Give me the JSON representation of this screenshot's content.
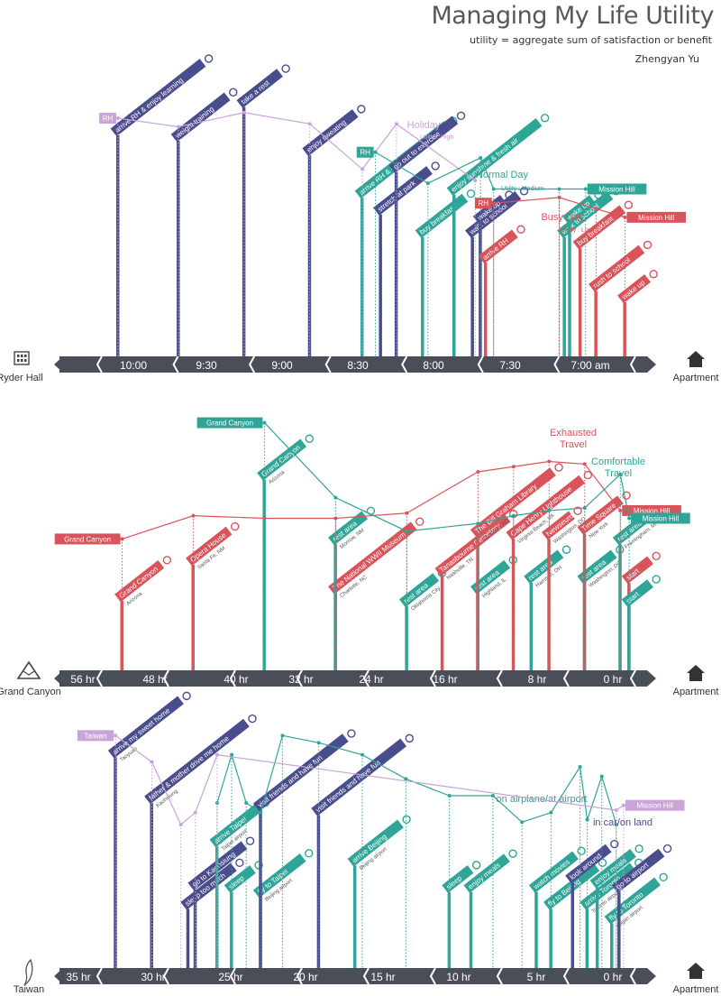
{
  "header": {
    "title": "Managing My Life Utility",
    "subtitle": "utility = aggregate sum of satisfaction or benefit",
    "author": "Zhengyan Yu"
  },
  "colors": {
    "purple": "#c9a3d9",
    "teal": "#2ea597",
    "red": "#d9545a",
    "navy": "#4a4d8c",
    "axis": "#4a4e58"
  },
  "chart_data": [
    {
      "type": "line",
      "title": "",
      "start_label": "Ryder Hall",
      "start_icon": "building-icon",
      "end_label": "Apartment",
      "end_icon": "home-icon",
      "time_labels": [
        "10:00",
        "9:30",
        "9:00",
        "8:30",
        "8:00",
        "7:30",
        "7:00 am"
      ],
      "series": [
        {
          "name": "Holiday",
          "sub": "Utility : High",
          "color": "#c9a3d9",
          "start_tag": "RH",
          "end_tag": "",
          "points": [
            [
              "10:18",
              8.7
            ],
            [
              "9:55",
              8.4
            ],
            [
              "9:30",
              8.9
            ],
            [
              "9:05",
              8.5
            ],
            [
              "8:45",
              6.9
            ],
            [
              "8:32",
              8.5
            ],
            [
              "8:02",
              6.5
            ]
          ]
        },
        {
          "name": "Normal Day",
          "sub": "Utility : Medium",
          "color": "#2ea597",
          "start_tag": "RH",
          "end_tag": "Mission Hill",
          "points": [
            [
              "8:40",
              7.5
            ],
            [
              "8:20",
              6.4
            ],
            [
              "8:00",
              7.3
            ],
            [
              "7:55",
              6.2
            ],
            [
              "7:30",
              6.2
            ],
            [
              "7:20",
              6.2
            ]
          ]
        },
        {
          "name": "Busy Day",
          "sub": "Utility : Low",
          "color": "#d9545a",
          "start_tag": "RH",
          "end_tag": "Mission Hill",
          "points": [
            [
              "7:55",
              5.7
            ],
            [
              "7:30",
              5.9
            ],
            [
              "7:16",
              5.5
            ],
            [
              "7:05",
              5.2
            ]
          ]
        }
      ],
      "events": [
        {
          "label": "arrive RH & enjoy learning",
          "loc": "",
          "icon": "book-icon",
          "color": "#4a4d8c",
          "time": "10:18",
          "top": 6.1,
          "h": 98
        },
        {
          "label": "weight training",
          "loc": "",
          "icon": "dumbbell-icon",
          "color": "#4a4d8c",
          "time": "9:55",
          "top": 5.9,
          "h": 68
        },
        {
          "label": "take a rest",
          "loc": "",
          "icon": "rest-icon",
          "color": "#4a4d8c",
          "time": "9:30",
          "top": 7.1,
          "h": 50
        },
        {
          "label": "enjoy sweating",
          "loc": "",
          "icon": "sweat-icon",
          "color": "#4a4d8c",
          "time": "9:05",
          "top": 5.4,
          "h": 68
        },
        {
          "label": "arrive RH & enjoy learning",
          "loc": "",
          "icon": "book-icon",
          "color": "#2ea597",
          "time": "8:45",
          "top": 3.9,
          "h": 112
        },
        {
          "label": "stretch at park",
          "loc": "",
          "icon": "stretch-icon",
          "color": "#4a4d8c",
          "time": "8:38",
          "top": 3.3,
          "h": 60
        },
        {
          "label": "go out to exercise",
          "loc": "",
          "icon": "run-icon",
          "color": "#4a4d8c",
          "time": "8:32",
          "top": 4.8,
          "h": 60
        },
        {
          "label": "buy breakfast",
          "loc": "",
          "icon": "breakfast-icon",
          "color": "#2ea597",
          "time": "8:22",
          "top": 2.5,
          "h": 56
        },
        {
          "label": "enjoy sunshine & fresh air",
          "loc": "",
          "icon": "sun-icon",
          "color": "#2ea597",
          "time": "8:10",
          "top": 4.0,
          "h": 108
        },
        {
          "label": "walk to school",
          "loc": "",
          "icon": "walk-icon",
          "color": "#4a4d8c",
          "time": "8:03",
          "top": 2.5,
          "h": 56
        },
        {
          "label": "wake up",
          "loc": "",
          "icon": "bed-icon",
          "color": "#4a4d8c",
          "time": "8:00",
          "top": 3.0,
          "h": 40
        },
        {
          "label": "arrive RH",
          "loc": "",
          "icon": "book-icon",
          "color": "#d9545a",
          "time": "7:58",
          "top": 1.6,
          "h": 40
        },
        {
          "label": "walk to school",
          "loc": "",
          "icon": "walk-icon",
          "color": "#2ea597",
          "time": "7:28",
          "top": 2.5,
          "h": 56
        },
        {
          "label": "wake up",
          "loc": "",
          "icon": "bed-icon",
          "color": "#2ea597",
          "time": "7:26",
          "top": 3.0,
          "h": 36
        },
        {
          "label": "buy breakfast",
          "loc": "",
          "icon": "breakfast-icon",
          "color": "#d9545a",
          "time": "7:22",
          "top": 2.1,
          "h": 56
        },
        {
          "label": "rush to school",
          "loc": "",
          "icon": "bike-icon",
          "color": "#d9545a",
          "time": "7:16",
          "top": 0.6,
          "h": 62
        },
        {
          "label": "wake up",
          "loc": "",
          "icon": "bed-icon",
          "color": "#d9545a",
          "time": "7:05",
          "top": 0.2,
          "h": 36
        }
      ]
    },
    {
      "type": "line",
      "title": "",
      "start_label": "Grand Canyon",
      "start_icon": "mountain-icon",
      "end_label": "Apartment",
      "end_icon": "home-icon",
      "time_labels": [
        "56 hr",
        "48 hr",
        "40 hr",
        "32 hr",
        "24 hr",
        "16 hr",
        "8 hr",
        "0 hr"
      ],
      "series": [
        {
          "name": "Exhausted Travel",
          "sub": "",
          "color": "#d9545a",
          "start_tag": "Grand Canyon",
          "end_tag": "Mission Hill",
          "points": [
            [
              56,
              5.4
            ],
            [
              48,
              6.3
            ],
            [
              40,
              6.2
            ],
            [
              32,
              6.2
            ],
            [
              24,
              6.4
            ],
            [
              16,
              8.0
            ],
            [
              12,
              8.2
            ],
            [
              8,
              8.4
            ],
            [
              4,
              8.3
            ],
            [
              0,
              6.5
            ]
          ]
        },
        {
          "name": "Comfortable Travel",
          "sub": "",
          "color": "#2ea597",
          "start_tag": "Grand Canyon",
          "end_tag": "Mission Hill",
          "points": [
            [
              40,
              9.9
            ],
            [
              32,
              7.0
            ],
            [
              24,
              5.7
            ],
            [
              16,
              6.0
            ],
            [
              12,
              6.3
            ],
            [
              8,
              6.5
            ],
            [
              4,
              6.6
            ],
            [
              0,
              7.9
            ],
            [
              -1,
              6.2
            ]
          ]
        }
      ],
      "events": [
        {
          "label": "Grand Canyon",
          "loc": "Arizona",
          "icon": "warning-icon",
          "color": "#d9545a",
          "time": 56,
          "top": 1.0,
          "h": 14
        },
        {
          "label": "Opera House",
          "loc": "Santa Fe, NM",
          "icon": "opera-icon",
          "color": "#d9545a",
          "time": 48,
          "top": 2.4,
          "h": 40
        },
        {
          "label": "Grand Canyon",
          "loc": "Arizona",
          "icon": "warning-icon",
          "color": "#2ea597",
          "time": 40,
          "top": 5.7,
          "h": 20
        },
        {
          "label": "The National WWII Museum",
          "loc": "Charlotte, NC",
          "icon": "museum-icon",
          "color": "#d9545a",
          "time": 32,
          "top": 1.3,
          "h": 44
        },
        {
          "label": "rest area",
          "loc": "Morrow, NM",
          "icon": "rest-icon",
          "color": "#2ea597",
          "time": 32,
          "top": 3.2,
          "h": 28
        },
        {
          "label": "rest area",
          "loc": "Oklahoma City",
          "icon": "rest-icon",
          "color": "#2ea597",
          "time": 24,
          "top": 0.8,
          "h": 22
        },
        {
          "label": "Tanasbourne Cemetery",
          "loc": "Nashville, TN",
          "icon": "church-icon",
          "color": "#d9545a",
          "time": 20,
          "top": 2.0,
          "h": 42
        },
        {
          "label": "rest area",
          "loc": "Highland, IL",
          "icon": "rest-icon",
          "color": "#2ea597",
          "time": 16,
          "top": 1.3,
          "h": 22
        },
        {
          "label": "The Bill Graham Library",
          "loc": "Charlotte, NC",
          "icon": "library-icon",
          "color": "#d9545a",
          "time": 16,
          "top": 3.5,
          "h": 60
        },
        {
          "label": "rest area",
          "loc": "Harrison, OH",
          "icon": "rest-icon",
          "color": "#2ea597",
          "time": 10,
          "top": 1.7,
          "h": 22
        },
        {
          "label": "Cape Henry Lighthouse",
          "loc": "Virginia Beach, VA",
          "icon": "lighthouse-icon",
          "color": "#d9545a",
          "time": 12,
          "top": 3.4,
          "h": 60
        },
        {
          "label": "Newseum",
          "loc": "Washington, DC",
          "icon": "museum-icon",
          "color": "#d9545a",
          "time": 8,
          "top": 3.4,
          "h": 52
        },
        {
          "label": "rest area",
          "loc": "Washington, DC",
          "icon": "rest-icon",
          "color": "#2ea597",
          "time": 4,
          "top": 1.7,
          "h": 22
        },
        {
          "label": "Time Square",
          "loc": "New York",
          "icon": "times-icon",
          "color": "#d9545a",
          "time": 4,
          "top": 3.6,
          "h": 30
        },
        {
          "label": "rest area",
          "loc": "Framingham, MA",
          "icon": "rest-icon",
          "color": "#2ea597",
          "time": 0,
          "top": 3.2,
          "h": 22
        },
        {
          "label": "start",
          "loc": "",
          "icon": "car-icon",
          "color": "#d9545a",
          "time": -1,
          "top": 1.7,
          "h": 14
        },
        {
          "label": "start",
          "loc": "",
          "icon": "car-icon",
          "color": "#2ea597",
          "time": -1,
          "top": 0.8,
          "h": 14
        }
      ]
    },
    {
      "type": "line",
      "title": "",
      "start_label": "Taiwan",
      "start_icon": "taiwan-icon",
      "end_label": "Apartment",
      "end_icon": "home-icon",
      "time_labels": [
        "35 hr",
        "30 hr",
        "25 hr",
        "20 hr",
        "15 hr",
        "10 hr",
        "5 hr",
        "0 hr"
      ],
      "series": [
        {
          "name": "on airplane/at airport",
          "sub": "",
          "color": "#2ea597",
          "start_tag": "",
          "end_tag": "",
          "points": [
            [
              28,
              7.2
            ],
            [
              27,
              9.2
            ],
            [
              26,
              7.2
            ],
            [
              25,
              6.8
            ],
            [
              23.5,
              10.0
            ],
            [
              21,
              9.7
            ],
            [
              18,
              9.2
            ],
            [
              15,
              8.2
            ],
            [
              12,
              7.5
            ],
            [
              9,
              7.5
            ],
            [
              7,
              6.4
            ],
            [
              5,
              6.8
            ],
            [
              3,
              8.7
            ],
            [
              2.5,
              6.5
            ],
            [
              1.5,
              8.3
            ],
            [
              0.5,
              6.3
            ]
          ]
        },
        {
          "name": "in car/on land",
          "sub": "",
          "color": "#c9a3d9",
          "start_tag": "Taiwan",
          "end_tag": "Mission Hill",
          "points": [
            [
              35,
              10.0
            ],
            [
              32.5,
              8.9
            ],
            [
              30.5,
              6.3
            ],
            [
              29.5,
              6.8
            ],
            [
              28,
              9.2
            ],
            [
              0.5,
              6.9
            ],
            [
              0,
              7.1
            ]
          ]
        }
      ],
      "events": [
        {
          "label": "arrive my sweet home",
          "loc": "Taoyuan",
          "icon": "heart-icon",
          "color": "#4a4d8c",
          "time": 35,
          "top": 7.1,
          "h": 90
        },
        {
          "label": "father & mother drive me home",
          "loc": "Kaohsiung",
          "icon": "car-icon",
          "color": "#4a4d8c",
          "time": 32.5,
          "top": 5.2,
          "h": 130
        },
        {
          "label": "sleep too much",
          "loc": "",
          "icon": "sleep-icon",
          "color": "#4a4d8c",
          "time": 30,
          "top": 0.8,
          "h": 22
        },
        {
          "label": "go to Kaohsiung",
          "loc": "",
          "icon": "car-icon",
          "color": "#4a4d8c",
          "time": 29.5,
          "top": 1.6,
          "h": 40
        },
        {
          "label": "arrive Taipei",
          "loc": "Taipei airport",
          "icon": "plane-icon",
          "color": "#2ea597",
          "time": 28,
          "top": 3.4,
          "h": 40
        },
        {
          "label": "sleep",
          "loc": "",
          "icon": "sleep-icon",
          "color": "#2ea597",
          "time": 27,
          "top": 1.5,
          "h": 22
        },
        {
          "label": "fly to Taipei",
          "loc": "Beijing airport",
          "icon": "plane-icon",
          "color": "#2ea597",
          "time": 25,
          "top": 1.3,
          "h": 40
        },
        {
          "label": "visit friends and have fun",
          "loc": "",
          "icon": "cloud-icon",
          "color": "#4a4d8c",
          "time": 25,
          "top": 4.9,
          "h": 90
        },
        {
          "label": "visit friends and have fun",
          "loc": "",
          "icon": "people-icon",
          "color": "#4a4d8c",
          "time": 21,
          "top": 4.7,
          "h": 90
        },
        {
          "label": "arrive Beijing",
          "loc": "Beijing airport",
          "icon": "plane-icon",
          "color": "#2ea597",
          "time": 18.5,
          "top": 2.6,
          "h": 40
        },
        {
          "label": "sleep",
          "loc": "",
          "icon": "sleep-icon",
          "color": "#2ea597",
          "time": 12,
          "top": 1.5,
          "h": 22
        },
        {
          "label": "enjoy meals",
          "loc": "",
          "icon": "meal-icon",
          "color": "#2ea597",
          "time": 10.5,
          "top": 1.5,
          "h": 40
        },
        {
          "label": "watch movies",
          "loc": "",
          "icon": "movie-icon",
          "color": "#2ea597",
          "time": 6,
          "top": 1.5,
          "h": 40
        },
        {
          "label": "fly to Beijing",
          "loc": "",
          "icon": "plane-icon",
          "color": "#2ea597",
          "time": 5,
          "top": 0.8,
          "h": 30
        },
        {
          "label": "look around",
          "loc": "",
          "icon": "look-icon",
          "color": "#4a4d8c",
          "time": 3.5,
          "top": 1.9,
          "h": 30
        },
        {
          "label": "arrive Toronto",
          "loc": "Toronto airport",
          "icon": "plane-icon",
          "color": "#2ea597",
          "time": 2.5,
          "top": 0.8,
          "h": 30
        },
        {
          "label": "enjoy meals",
          "loc": "",
          "icon": "meal-icon",
          "color": "#2ea597",
          "time": 1.8,
          "top": 1.7,
          "h": 40
        },
        {
          "label": "fly to Toronto",
          "loc": "Logan airport",
          "icon": "plane-icon",
          "color": "#2ea597",
          "time": 0.8,
          "top": 0.2,
          "h": 30
        },
        {
          "label": "go to airport",
          "loc": "",
          "icon": "car-icon",
          "color": "#4a4d8c",
          "time": 0.3,
          "top": 1.5,
          "h": 30
        }
      ]
    }
  ]
}
